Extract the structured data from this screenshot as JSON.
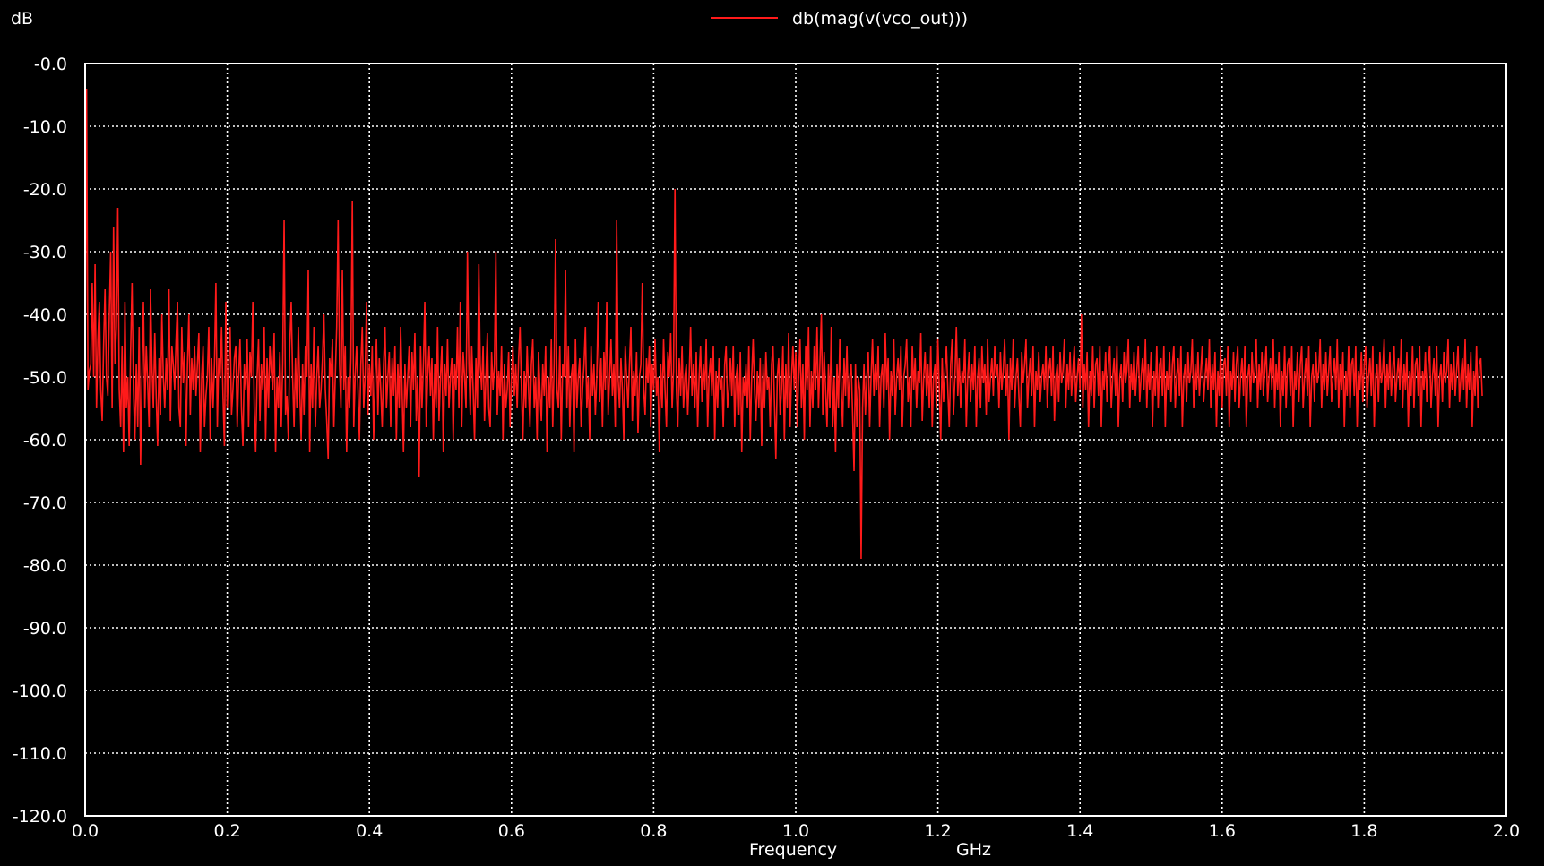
{
  "chart_data": {
    "type": "line",
    "ylabel": "dB",
    "xlabel": "Frequency",
    "xunit": "GHz",
    "xlim": [
      0.0,
      2.0
    ],
    "ylim": [
      -120.0,
      0.0
    ],
    "x_ticks": [
      "0.0",
      "0.2",
      "0.4",
      "0.6",
      "0.8",
      "1.0",
      "1.2",
      "1.4",
      "1.6",
      "1.8",
      "2.0"
    ],
    "y_ticks": [
      "-0.0",
      "-10.0",
      "-20.0",
      "-30.0",
      "-40.0",
      "-50.0",
      "-60.0",
      "-70.0",
      "-80.0",
      "-90.0",
      "-100.0",
      "-110.0",
      "-120.0"
    ],
    "grid": true,
    "legend_position": "top-center",
    "colors": {
      "background": "#000000",
      "grid": "#ffffff",
      "series": "#ff1a1a",
      "text": "#ffffff"
    },
    "series": [
      {
        "name": "db(mag(v(vco_out)))",
        "x_step": 0.002,
        "values": [
          -50,
          -4,
          -52,
          -49,
          -48,
          -35,
          -50,
          -32,
          -55,
          -44,
          -38,
          -52,
          -57,
          -45,
          -36,
          -50,
          -53,
          -40,
          -30,
          -55,
          -26,
          -48,
          -42,
          -23,
          -52,
          -58,
          -45,
          -62,
          -38,
          -55,
          -50,
          -61,
          -46,
          -35,
          -52,
          -60,
          -48,
          -58,
          -42,
          -64,
          -50,
          -38,
          -55,
          -45,
          -51,
          -58,
          -36,
          -48,
          -55,
          -43,
          -53,
          -61,
          -47,
          -56,
          -40,
          -50,
          -55,
          -47,
          -52,
          -36,
          -57,
          -45,
          -48,
          -52,
          -44,
          -38,
          -55,
          -58,
          -42,
          -51,
          -46,
          -61,
          -48,
          -40,
          -56,
          -47,
          -52,
          -45,
          -53,
          -48,
          -43,
          -62,
          -50,
          -45,
          -58,
          -53,
          -50,
          -42,
          -60,
          -47,
          -55,
          -48,
          -35,
          -58,
          -47,
          -50,
          -42,
          -53,
          -61,
          -38,
          -55,
          -48,
          -42,
          -56,
          -52,
          -47,
          -45,
          -58,
          -50,
          -44,
          -55,
          -61,
          -48,
          -52,
          -44,
          -58,
          -46,
          -50,
          -38,
          -55,
          -62,
          -50,
          -44,
          -57,
          -48,
          -52,
          -42,
          -60,
          -47,
          -55,
          -45,
          -49,
          -52,
          -43,
          -62,
          -50,
          -55,
          -46,
          -58,
          -48,
          -25,
          -56,
          -53,
          -60,
          -45,
          -38,
          -50,
          -58,
          -47,
          -55,
          -42,
          -52,
          -60,
          -48,
          -56,
          -45,
          -50,
          -33,
          -62,
          -48,
          -55,
          -42,
          -58,
          -50,
          -45,
          -55,
          -52,
          -47,
          -40,
          -52,
          -57,
          -63,
          -47,
          -50,
          -44,
          -58,
          -50,
          -42,
          -25,
          -48,
          -55,
          -33,
          -52,
          -45,
          -62,
          -50,
          -55,
          -47,
          -22,
          -58,
          -50,
          -45,
          -52,
          -60,
          -48,
          -42,
          -55,
          -50,
          -38,
          -56,
          -48,
          -53,
          -45,
          -60,
          -50,
          -44,
          -56,
          -47,
          -52,
          -58,
          -48,
          -42,
          -55,
          -50,
          -46,
          -58,
          -47,
          -53,
          -45,
          -60,
          -48,
          -55,
          -42,
          -52,
          -62,
          -48,
          -55,
          -50,
          -45,
          -58,
          -46,
          -52,
          -43,
          -57,
          -50,
          -66,
          -45,
          -55,
          -48,
          -38,
          -58,
          -50,
          -45,
          -53,
          -47,
          -60,
          -48,
          -55,
          -42,
          -57,
          -50,
          -45,
          -62,
          -48,
          -53,
          -44,
          -55,
          -50,
          -47,
          -60,
          -48,
          -52,
          -42,
          -55,
          -38,
          -58,
          -46,
          -50,
          -55,
          -30,
          -48,
          -56,
          -45,
          -52,
          -60,
          -47,
          -55,
          -32,
          -48,
          -52,
          -45,
          -57,
          -50,
          -43,
          -55,
          -58,
          -46,
          -52,
          -48,
          -30,
          -56,
          -49,
          -53,
          -45,
          -60,
          -48,
          -55,
          -52,
          -46,
          -58,
          -50,
          -45,
          -53,
          -48,
          -55,
          -47,
          -42,
          -52,
          -60,
          -49,
          -55,
          -45,
          -52,
          -58,
          -48,
          -44,
          -55,
          -50,
          -60,
          -46,
          -52,
          -57,
          -48,
          -53,
          -45,
          -62,
          -50,
          -55,
          -44,
          -58,
          -48,
          -28,
          -52,
          -55,
          -45,
          -60,
          -48,
          -50,
          -33,
          -55,
          -45,
          -58,
          -50,
          -48,
          -62,
          -44,
          -55,
          -50,
          -47,
          -58,
          -52,
          -48,
          -42,
          -55,
          -50,
          -60,
          -45,
          -53,
          -48,
          -56,
          -50,
          -38,
          -54,
          -47,
          -58,
          -46,
          -52,
          -38,
          -56,
          -50,
          -44,
          -53,
          -48,
          -58,
          -25,
          -50,
          -55,
          -47,
          -52,
          -60,
          -45,
          -50,
          -55,
          -48,
          -42,
          -57,
          -49,
          -53,
          -46,
          -59,
          -50,
          -48,
          -35,
          -52,
          -56,
          -47,
          -51,
          -45,
          -58,
          -48,
          -52,
          -44,
          -53,
          -50,
          -62,
          -48,
          -55,
          -44,
          -52,
          -58,
          -46,
          -50,
          -43,
          -55,
          -49,
          -20,
          -52,
          -58,
          -47,
          -53,
          -45,
          -55,
          -50,
          -48,
          -56,
          -50,
          -42,
          -53,
          -48,
          -55,
          -46,
          -58,
          -50,
          -45,
          -54,
          -48,
          -52,
          -44,
          -58,
          -50,
          -47,
          -53,
          -45,
          -60,
          -49,
          -55,
          -47,
          -52,
          -50,
          -58,
          -48,
          -45,
          -55,
          -52,
          -47,
          -53,
          -45,
          -58,
          -50,
          -48,
          -56,
          -46,
          -62,
          -50,
          -53,
          -48,
          -55,
          -45,
          -60,
          -50,
          -44,
          -52,
          -57,
          -49,
          -55,
          -47,
          -61,
          -48,
          -55,
          -46,
          -52,
          -50,
          -58,
          -48,
          -45,
          -54,
          -63,
          -50,
          -47,
          -56,
          -52,
          -45,
          -60,
          -48,
          -55,
          -43,
          -58,
          -50,
          -45,
          -52,
          -46,
          -58,
          -50,
          -44,
          -55,
          -48,
          -60,
          -45,
          -52,
          -42,
          -58,
          -49,
          -55,
          -45,
          -52,
          -42,
          -55,
          -48,
          -40,
          -56,
          -46,
          -52,
          -58,
          -48,
          -55,
          -42,
          -58,
          -50,
          -62,
          -48,
          -55,
          -44,
          -52,
          -58,
          -47,
          -53,
          -45,
          -55,
          -50,
          -48,
          -56,
          -65,
          -48,
          -58,
          -50,
          -52,
          -79,
          -55,
          -48,
          -56,
          -50,
          -46,
          -58,
          -50,
          -44,
          -53,
          -48,
          -52,
          -45,
          -58,
          -50,
          -48,
          -55,
          -43,
          -52,
          -47,
          -60,
          -49,
          -53,
          -44,
          -56,
          -50,
          -47,
          -52,
          -45,
          -58,
          -50,
          -48,
          -44,
          -54,
          -50,
          -58,
          -45,
          -52,
          -47,
          -55,
          -49,
          -51,
          -43,
          -57,
          -50,
          -46,
          -53,
          -48,
          -55,
          -45,
          -58,
          -50,
          -48,
          -55,
          -44,
          -52,
          -60,
          -47,
          -54,
          -49,
          -45,
          -52,
          -58,
          -48,
          -44,
          -56,
          -50,
          -42,
          -53,
          -47,
          -55,
          -49,
          -51,
          -44,
          -58,
          -50,
          -46,
          -54,
          -48,
          -52,
          -45,
          -58,
          -50,
          -47,
          -55,
          -45,
          -51,
          -48,
          -56,
          -44,
          -54,
          -50,
          -47,
          -53,
          -45,
          -50,
          -48,
          -55,
          -46,
          -52,
          -49,
          -44,
          -53,
          -48,
          -60,
          -47,
          -52,
          -44,
          -55,
          -50,
          -47,
          -53,
          -58,
          -46,
          -51,
          -48,
          -44,
          -55,
          -50,
          -47,
          -53,
          -45,
          -58,
          -49,
          -52,
          -46,
          -54,
          -50,
          -48,
          -52,
          -45,
          -55,
          -49,
          -47,
          -53,
          -45,
          -57,
          -50,
          -48,
          -54,
          -46,
          -51,
          -49,
          -44,
          -55,
          -48,
          -52,
          -46,
          -53,
          -49,
          -45,
          -54,
          -50,
          -47,
          -52,
          -40,
          -55,
          -48,
          -52,
          -46,
          -58,
          -49,
          -53,
          -45,
          -55,
          -48,
          -47,
          -53,
          -45,
          -58,
          -49,
          -52,
          -46,
          -54,
          -48,
          -45,
          -55,
          -50,
          -47,
          -53,
          -45,
          -58,
          -50,
          -48,
          -54,
          -46,
          -51,
          -49,
          -44,
          -55,
          -48,
          -52,
          -46,
          -53,
          -49,
          -45,
          -54,
          -50,
          -47,
          -52,
          -44,
          -55,
          -48,
          -52,
          -46,
          -58,
          -49,
          -53,
          -45,
          -55,
          -48,
          -47,
          -53,
          -45,
          -58,
          -49,
          -52,
          -46,
          -54,
          -48,
          -45,
          -55,
          -50,
          -47,
          -53,
          -45,
          -58,
          -50,
          -48,
          -54,
          -46,
          -51,
          -49,
          -44,
          -55,
          -48,
          -52,
          -46,
          -53,
          -49,
          -45,
          -54,
          -50,
          -47,
          -52,
          -44,
          -55,
          -48,
          -52,
          -46,
          -58,
          -49,
          -53,
          -45,
          -55,
          -48,
          -47,
          -53,
          -45,
          -58,
          -49,
          -52,
          -46,
          -54,
          -48,
          -45,
          -55,
          -50,
          -47,
          -53,
          -45,
          -58,
          -50,
          -48,
          -54,
          -46,
          -51,
          -49,
          -44,
          -55,
          -48,
          -52,
          -46,
          -53,
          -49,
          -45,
          -54,
          -50,
          -47,
          -52,
          -44,
          -55,
          -48,
          -52,
          -46,
          -58,
          -49,
          -53,
          -45,
          -55,
          -48,
          -47,
          -53,
          -45,
          -58,
          -49,
          -52,
          -46,
          -54,
          -48,
          -45,
          -55,
          -50,
          -47,
          -53,
          -45,
          -58,
          -50,
          -48,
          -54,
          -46,
          -51,
          -49,
          -44,
          -55,
          -48,
          -52,
          -46,
          -53,
          -49,
          -45,
          -54,
          -50,
          -47,
          -52,
          -44,
          -55,
          -48,
          -52,
          -46,
          -58,
          -49,
          -53,
          -45,
          -55,
          -48,
          -47,
          -53,
          -45,
          -58,
          -49,
          -52,
          -46,
          -54,
          -48,
          -45,
          -55,
          -50,
          -47,
          -53,
          -45,
          -58,
          -50,
          -48,
          -54,
          -46,
          -51,
          -49,
          -44,
          -55,
          -48,
          -52,
          -46,
          -53,
          -49,
          -45,
          -54,
          -50,
          -47,
          -52,
          -44,
          -55,
          -48,
          -52,
          -46,
          -58,
          -49,
          -53,
          -45,
          -55,
          -48,
          -47,
          -53,
          -45,
          -58,
          -49,
          -52,
          -46,
          -54,
          -48,
          -45,
          -55,
          -50,
          -47,
          -53,
          -45,
          -58,
          -50,
          -48,
          -54,
          -46,
          -51,
          -49,
          -44,
          -55,
          -48,
          -52,
          -46,
          -53,
          -49,
          -45,
          -54,
          -50,
          -47,
          -52,
          -44,
          -55,
          -48,
          -52,
          -46,
          -58,
          -49,
          -53,
          -45,
          -55,
          -48,
          -47,
          -53
        ]
      }
    ]
  }
}
